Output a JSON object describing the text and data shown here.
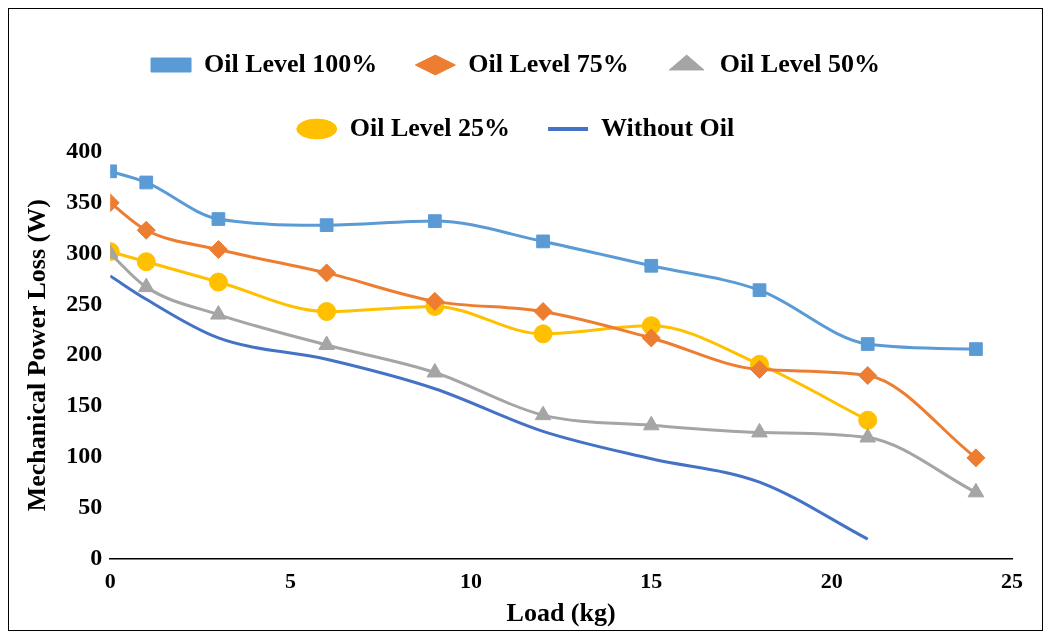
{
  "chart_data": {
    "type": "line",
    "xlabel": "Load (kg)",
    "ylabel": "Mechanical Power Loss (W)",
    "xlim": [
      0,
      25
    ],
    "xticks": [
      0,
      5,
      10,
      15,
      20,
      25
    ],
    "ylim": [
      0,
      400
    ],
    "yticks": [
      0,
      50,
      100,
      150,
      200,
      250,
      300,
      350,
      400
    ],
    "grid": false,
    "legend": "top",
    "series": [
      {
        "name": "Oil Level 100%",
        "color": "#5b9bd5",
        "marker": "square",
        "x": [
          0,
          1,
          3,
          6,
          9,
          12,
          15,
          18,
          21,
          24
        ],
        "values": [
          381,
          370,
          334,
          328,
          332,
          312,
          288,
          264,
          211,
          206
        ]
      },
      {
        "name": "Oil Level 75%",
        "color": "#ed7d31",
        "marker": "diamond",
        "x": [
          0,
          1,
          3,
          6,
          9,
          12,
          15,
          18,
          21,
          24
        ],
        "values": [
          350,
          323,
          304,
          281,
          253,
          243,
          217,
          186,
          180,
          99
        ]
      },
      {
        "name": "Oil Level 50%",
        "color": "#a5a5a5",
        "marker": "triangle",
        "x": [
          0,
          1,
          3,
          6,
          9,
          12,
          15,
          18,
          21,
          24
        ],
        "values": [
          300,
          267,
          240,
          210,
          183,
          141,
          131,
          124,
          119,
          65
        ]
      },
      {
        "name": "Oil Level 25%",
        "color": "#ffc000",
        "marker": "circle",
        "x": [
          0,
          1,
          3,
          6,
          9,
          12,
          15,
          18,
          21
        ],
        "values": [
          302,
          292,
          272,
          243,
          248,
          221,
          229,
          191,
          136
        ]
      },
      {
        "name": "Without Oil",
        "color": "#4472c4",
        "marker": "none",
        "x": [
          0,
          1,
          3,
          6,
          9,
          12,
          15,
          18,
          21
        ],
        "values": [
          278,
          255,
          217,
          196,
          167,
          125,
          98,
          75,
          19
        ]
      }
    ]
  }
}
